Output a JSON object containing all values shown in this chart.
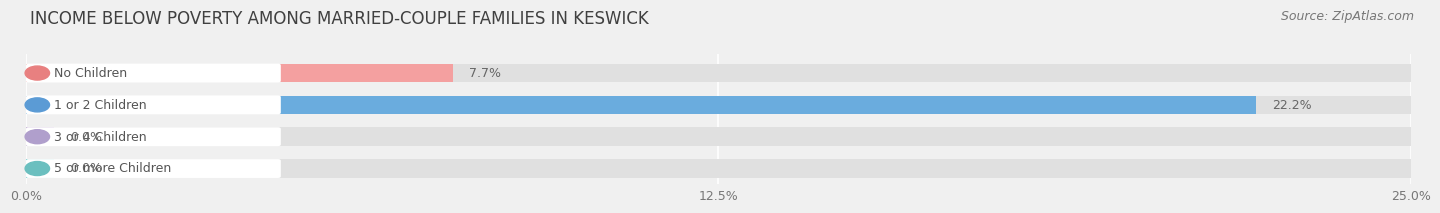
{
  "title": "INCOME BELOW POVERTY AMONG MARRIED-COUPLE FAMILIES IN KESWICK",
  "source": "Source: ZipAtlas.com",
  "categories": [
    "No Children",
    "1 or 2 Children",
    "3 or 4 Children",
    "5 or more Children"
  ],
  "values": [
    7.7,
    22.2,
    0.0,
    0.0
  ],
  "bar_colors": [
    "#f4a0a0",
    "#6aacde",
    "#c9b8d8",
    "#7ecece"
  ],
  "label_dot_colors": [
    "#e88080",
    "#5b9bd5",
    "#b09fcc",
    "#6bbfbf"
  ],
  "value_labels": [
    "7.7%",
    "22.2%",
    "0.0%",
    "0.0%"
  ],
  "xlim": [
    0,
    25.0
  ],
  "xticks": [
    0.0,
    12.5,
    25.0
  ],
  "xticklabels": [
    "0.0%",
    "12.5%",
    "25.0%"
  ],
  "background_color": "#f0f0f0",
  "bar_background_color": "#e0e0e0",
  "label_box_color": "#ffffff",
  "label_text_color": "#555555",
  "title_color": "#404040",
  "title_fontsize": 12,
  "source_fontsize": 9,
  "label_fontsize": 9,
  "value_fontsize": 9,
  "tick_fontsize": 9
}
